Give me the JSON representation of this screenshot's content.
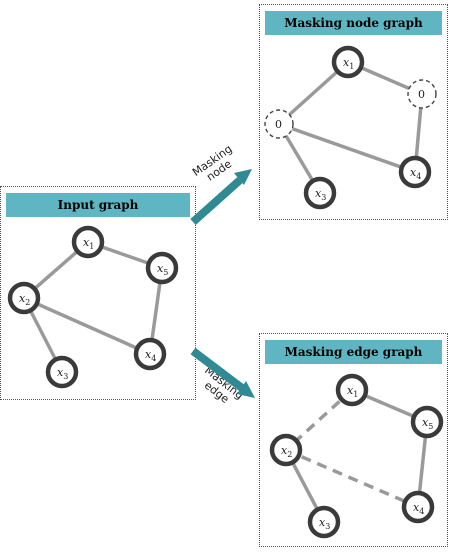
{
  "input_panel": {
    "title": "Input graph",
    "nodes": [
      {
        "var": "x",
        "sub": "1"
      },
      {
        "var": "x",
        "sub": "2"
      },
      {
        "var": "x",
        "sub": "3"
      },
      {
        "var": "x",
        "sub": "4"
      },
      {
        "var": "x",
        "sub": "5"
      }
    ]
  },
  "node_panel": {
    "title": "Masking node graph",
    "nodes": [
      {
        "var": "x",
        "sub": "1"
      },
      {
        "var": "0",
        "sub": ""
      },
      {
        "var": "0",
        "sub": ""
      },
      {
        "var": "x",
        "sub": "3"
      },
      {
        "var": "x",
        "sub": "4"
      }
    ]
  },
  "edge_panel": {
    "title": "Masking edge graph",
    "nodes": [
      {
        "var": "x",
        "sub": "1"
      },
      {
        "var": "x",
        "sub": "2"
      },
      {
        "var": "x",
        "sub": "3"
      },
      {
        "var": "x",
        "sub": "4"
      },
      {
        "var": "x",
        "sub": "5"
      }
    ]
  },
  "arrows": {
    "node_arrow": {
      "line1": "Masking",
      "line2": "node"
    },
    "edge_arrow": {
      "line1": "Masking",
      "line2": "edge"
    }
  },
  "colors": {
    "title_bar": "#5fb5c1",
    "arrow": "#2f8a94",
    "node_stroke": "#3a3a3a",
    "edge": "#9a9a9a"
  }
}
